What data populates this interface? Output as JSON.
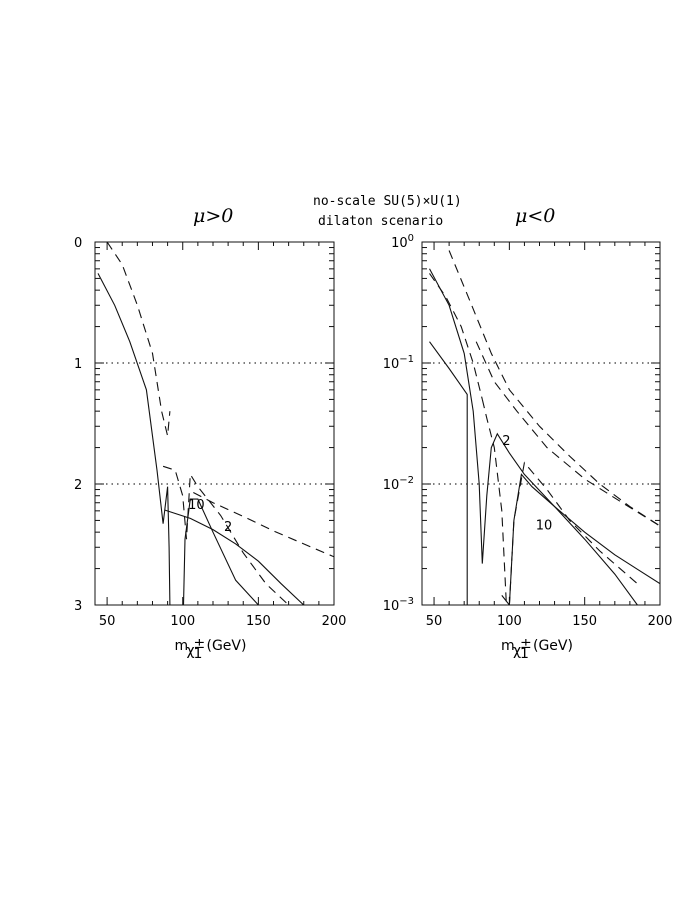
{
  "header": {
    "line1": "no-scale SU(5)×U(1)",
    "line2": "dilaton scenario"
  },
  "chart_data": [
    {
      "type": "line",
      "title": "μ>0",
      "xlabel": "m",
      "xlabel_sub": "χ",
      "xlabel_sup_sub": "±",
      "xlabel_index": "1",
      "xlabel_unit": "(GeV)",
      "xlim": [
        42,
        200
      ],
      "ylim": [
        0.001,
        1
      ],
      "yscale": "log",
      "x_ticks": [
        "50",
        "100",
        "150",
        "200"
      ],
      "y_ticks": [
        "",
        "",
        "",
        ""
      ],
      "y_tick_clipped": [
        "0",
        "1",
        "2",
        "3"
      ],
      "reference_lines": [
        0.1,
        0.01
      ],
      "grid": false,
      "legend": "none",
      "annotations": [
        {
          "text": "10",
          "x": 109,
          "y": 0.0062
        },
        {
          "text": "2",
          "x": 130,
          "y": 0.0041
        }
      ],
      "series": [
        {
          "style": "solid",
          "x": [
            44,
            55,
            65,
            76,
            83,
            87,
            90,
            91,
            91.5
          ],
          "y": [
            0.55,
            0.3,
            0.15,
            0.06,
            0.013,
            0.0047,
            0.0095,
            0.003,
            0.001
          ]
        },
        {
          "style": "solid",
          "x": [
            100.5,
            101.5,
            105,
            110,
            120,
            135,
            150
          ],
          "y": [
            0.001,
            0.0035,
            0.0075,
            0.0075,
            0.004,
            0.0016,
            0.001
          ]
        },
        {
          "style": "solid",
          "x": [
            88,
            105,
            120,
            135,
            150,
            165,
            180
          ],
          "y": [
            0.0061,
            0.0052,
            0.0042,
            0.0032,
            0.0023,
            0.0015,
            0.001
          ]
        },
        {
          "style": "dashed",
          "x": [
            50,
            60,
            70,
            80,
            86,
            90,
            91.5
          ],
          "y": [
            1,
            0.65,
            0.3,
            0.12,
            0.04,
            0.025,
            0.04
          ]
        },
        {
          "style": "dashed",
          "x": [
            87,
            95,
            100,
            102.5,
            105,
            110,
            125,
            140,
            155,
            170
          ],
          "y": [
            0.014,
            0.013,
            0.008,
            0.0035,
            0.012,
            0.0095,
            0.0055,
            0.0027,
            0.0015,
            0.001
          ]
        },
        {
          "style": "dashed",
          "x": [
            107,
            120,
            140,
            160,
            180,
            200
          ],
          "y": [
            0.0085,
            0.007,
            0.0054,
            0.0041,
            0.0032,
            0.0025
          ]
        }
      ]
    },
    {
      "type": "line",
      "title": "μ<0",
      "xlabel": "m",
      "xlabel_sub": "χ",
      "xlabel_sup_sub": "±",
      "xlabel_index": "1",
      "xlabel_unit": "(GeV)",
      "xlim": [
        42,
        200
      ],
      "ylim": [
        0.001,
        1
      ],
      "yscale": "log",
      "x_ticks": [
        "50",
        "100",
        "150",
        "200"
      ],
      "y_ticks": [
        "10",
        "10",
        "10",
        "10"
      ],
      "y_tick_exponents": [
        "0",
        "−1",
        "−2",
        "−3"
      ],
      "reference_lines": [
        0.1,
        0.01
      ],
      "grid": false,
      "legend": "none",
      "annotations": [
        {
          "text": "2",
          "x": 98,
          "y": 0.021
        },
        {
          "text": "10",
          "x": 123,
          "y": 0.0042
        }
      ],
      "series": [
        {
          "style": "solid",
          "x": [
            47,
            60,
            72,
            72,
            71.5
          ],
          "y": [
            0.15,
            0.09,
            0.055,
            0.001,
            0.001
          ]
        },
        {
          "style": "solid",
          "x": [
            47,
            60,
            70,
            76,
            80,
            82,
            85,
            88,
            92,
            100,
            110,
            130,
            150,
            170,
            185
          ],
          "y": [
            0.6,
            0.3,
            0.12,
            0.04,
            0.01,
            0.0022,
            0.008,
            0.02,
            0.026,
            0.018,
            0.012,
            0.0065,
            0.0035,
            0.0018,
            0.001
          ]
        },
        {
          "style": "solid",
          "x": [
            95,
            100,
            103,
            108,
            115,
            130,
            150,
            170,
            200
          ],
          "y": [
            0.0012,
            0.001,
            0.005,
            0.012,
            0.0095,
            0.0065,
            0.004,
            0.0026,
            0.0015
          ]
        },
        {
          "style": "dashed",
          "x": [
            47,
            58,
            68,
            76,
            82
          ],
          "y": [
            0.55,
            0.35,
            0.2,
            0.1,
            0.05
          ]
        },
        {
          "style": "dashed",
          "x": [
            82,
            85,
            90,
            95,
            98,
            100,
            103,
            110,
            125,
            140,
            160,
            185
          ],
          "y": [
            0.05,
            0.035,
            0.02,
            0.006,
            0.001,
            0.001,
            0.005,
            0.015,
            0.009,
            0.005,
            0.0028,
            0.0015
          ]
        },
        {
          "style": "dashed",
          "x": [
            60,
            75,
            88,
            100,
            120,
            140,
            160,
            180,
            200
          ],
          "y": [
            0.85,
            0.3,
            0.12,
            0.06,
            0.03,
            0.017,
            0.01,
            0.0065,
            0.0045
          ]
        },
        {
          "style": "dashed",
          "x": [
            78,
            90,
            105,
            125,
            150,
            175,
            200
          ],
          "y": [
            0.15,
            0.07,
            0.04,
            0.02,
            0.011,
            0.007,
            0.0045
          ]
        }
      ]
    }
  ]
}
